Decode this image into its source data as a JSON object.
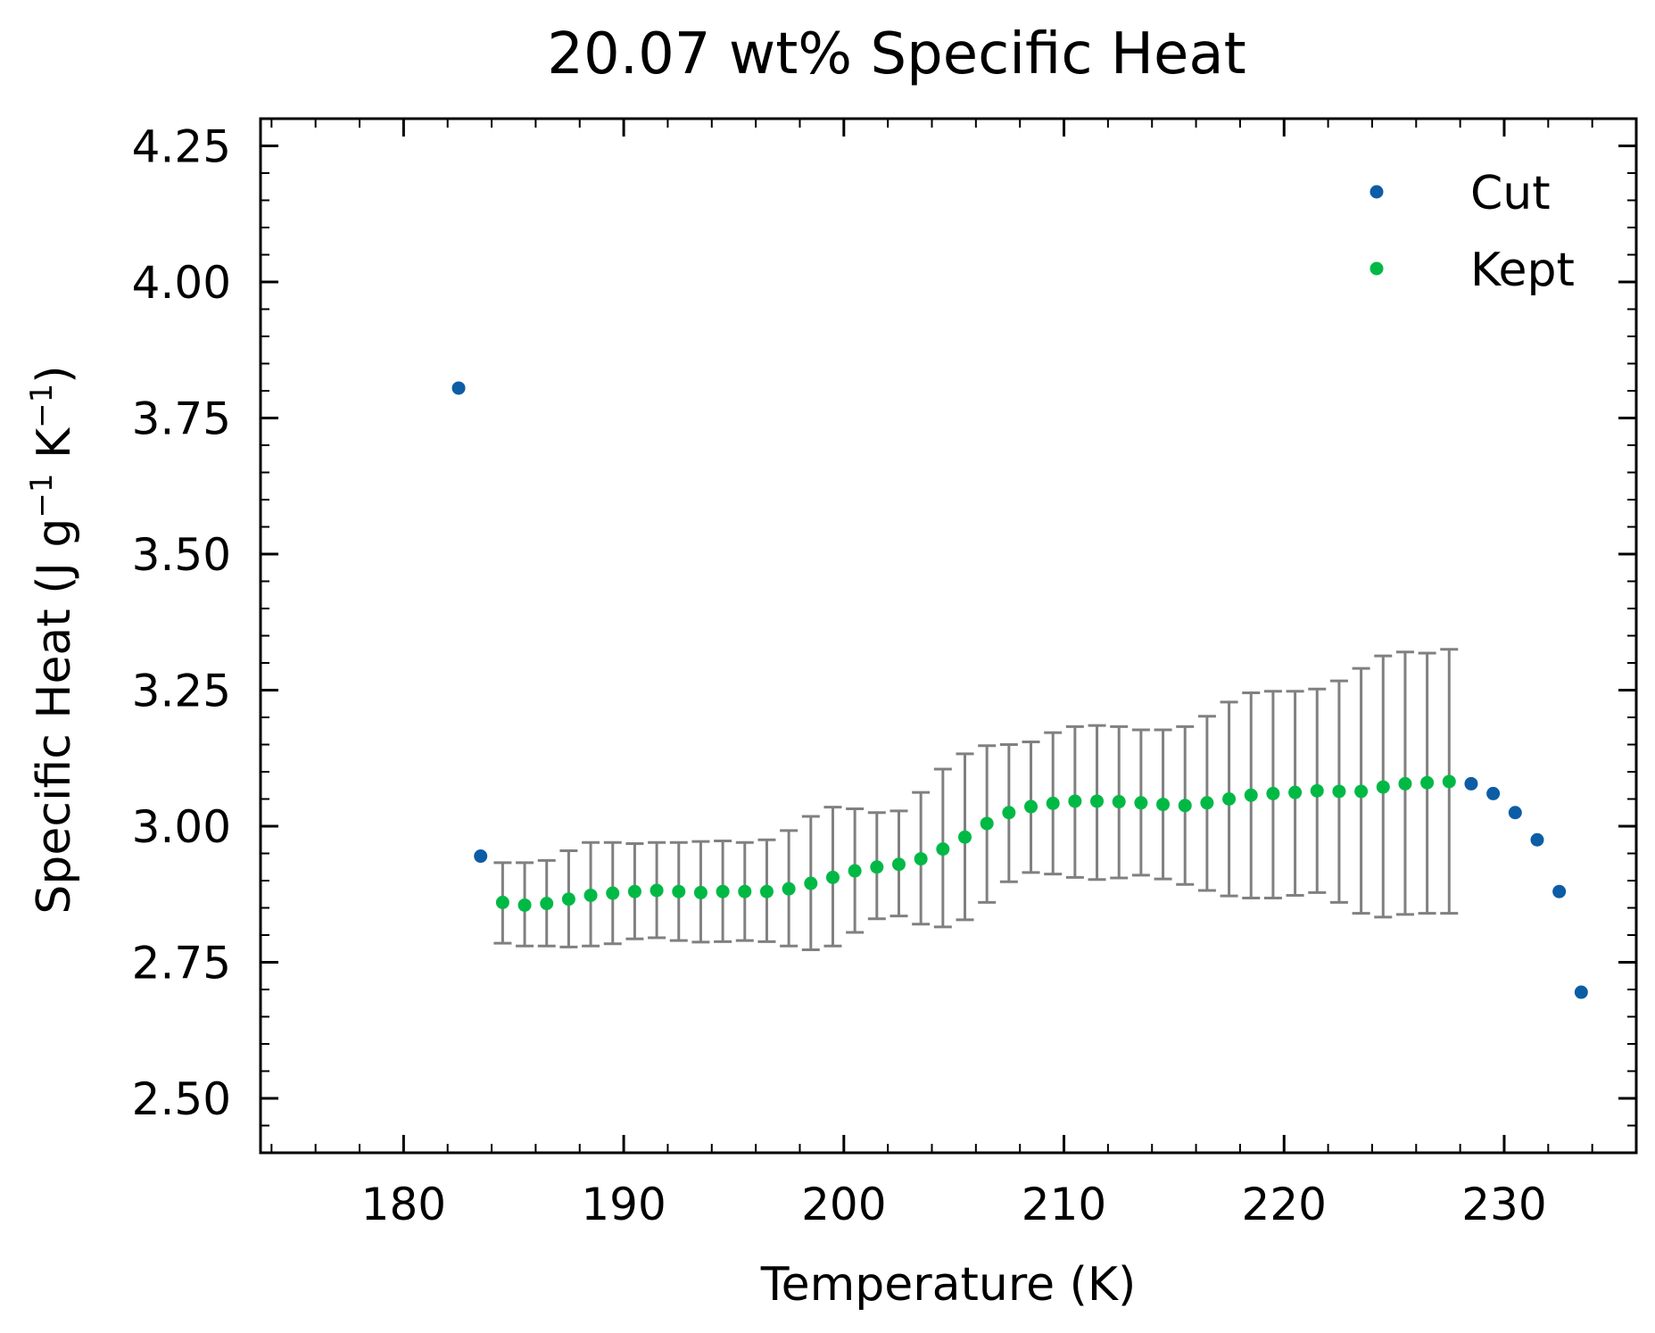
{
  "chart_data": {
    "type": "scatter",
    "title": "20.07 wt% Specific Heat",
    "xlabel": "Temperature (K)",
    "ylabel": {
      "base": "Specific Heat (J g",
      "sup1": "−1",
      "mid": " K",
      "sup2": "−1",
      "end": ")"
    },
    "xlim": [
      173.5,
      236.0
    ],
    "ylim": [
      2.4,
      4.3
    ],
    "xticks": [
      180,
      190,
      200,
      210,
      220,
      230
    ],
    "xtick_labels": [
      "180",
      "190",
      "200",
      "210",
      "220",
      "230"
    ],
    "yticks": [
      2.5,
      2.75,
      3.0,
      3.25,
      3.5,
      3.75,
      4.0,
      4.25
    ],
    "ytick_labels": [
      "2.50",
      "2.75",
      "3.00",
      "3.25",
      "3.50",
      "3.75",
      "4.00",
      "4.25"
    ],
    "x_minor_step": 2,
    "y_minor_step": 0.05,
    "legend_position": "top-right",
    "series": [
      {
        "name": "Cut",
        "color": "#0c5da5",
        "points": [
          [
            182.5,
            3.805
          ],
          [
            183.5,
            2.945
          ],
          [
            228.5,
            3.078
          ],
          [
            229.5,
            3.06
          ],
          [
            230.5,
            3.025
          ],
          [
            231.5,
            2.975
          ],
          [
            232.5,
            2.88
          ],
          [
            233.5,
            2.695
          ]
        ]
      },
      {
        "name": "Kept",
        "color": "#00b945",
        "errorbar_color": "#808080",
        "points": [
          [
            184.5,
            2.86,
            2.785,
            2.933
          ],
          [
            185.5,
            2.855,
            2.78,
            2.933
          ],
          [
            186.5,
            2.858,
            2.78,
            2.937
          ],
          [
            187.5,
            2.866,
            2.778,
            2.955
          ],
          [
            188.5,
            2.873,
            2.78,
            2.97
          ],
          [
            189.5,
            2.877,
            2.784,
            2.97
          ],
          [
            190.5,
            2.88,
            2.793,
            2.968
          ],
          [
            191.5,
            2.882,
            2.795,
            2.97
          ],
          [
            192.5,
            2.88,
            2.79,
            2.97
          ],
          [
            193.5,
            2.878,
            2.787,
            2.972
          ],
          [
            194.5,
            2.88,
            2.788,
            2.973
          ],
          [
            195.5,
            2.88,
            2.79,
            2.97
          ],
          [
            196.5,
            2.88,
            2.788,
            2.975
          ],
          [
            197.5,
            2.885,
            2.78,
            2.992
          ],
          [
            198.5,
            2.895,
            2.773,
            3.018
          ],
          [
            199.5,
            2.906,
            2.78,
            3.035
          ],
          [
            200.5,
            2.918,
            2.805,
            3.032
          ],
          [
            201.5,
            2.925,
            2.83,
            3.025
          ],
          [
            202.5,
            2.93,
            2.835,
            3.028
          ],
          [
            203.5,
            2.94,
            2.82,
            3.062
          ],
          [
            204.5,
            2.958,
            2.815,
            3.105
          ],
          [
            205.5,
            2.98,
            2.828,
            3.133
          ],
          [
            206.5,
            3.005,
            2.86,
            3.148
          ],
          [
            207.5,
            3.025,
            2.898,
            3.15
          ],
          [
            208.5,
            3.036,
            2.915,
            3.155
          ],
          [
            209.5,
            3.042,
            2.912,
            3.172
          ],
          [
            210.5,
            3.046,
            2.906,
            3.183
          ],
          [
            211.5,
            3.046,
            2.902,
            3.185
          ],
          [
            212.5,
            3.045,
            2.905,
            3.183
          ],
          [
            213.5,
            3.043,
            2.91,
            3.177
          ],
          [
            214.5,
            3.04,
            2.903,
            3.177
          ],
          [
            215.5,
            3.038,
            2.893,
            3.183
          ],
          [
            216.5,
            3.043,
            2.882,
            3.202
          ],
          [
            217.5,
            3.05,
            2.872,
            3.228
          ],
          [
            218.5,
            3.057,
            2.868,
            3.245
          ],
          [
            219.5,
            3.06,
            2.868,
            3.248
          ],
          [
            220.5,
            3.062,
            2.873,
            3.248
          ],
          [
            221.5,
            3.065,
            2.878,
            3.252
          ],
          [
            222.5,
            3.064,
            2.86,
            3.267
          ],
          [
            223.5,
            3.064,
            2.84,
            3.29
          ],
          [
            224.5,
            3.072,
            2.833,
            3.313
          ],
          [
            225.5,
            3.078,
            2.838,
            3.32
          ],
          [
            226.5,
            3.08,
            2.84,
            3.318
          ],
          [
            227.5,
            3.082,
            2.84,
            3.325
          ]
        ]
      }
    ]
  }
}
